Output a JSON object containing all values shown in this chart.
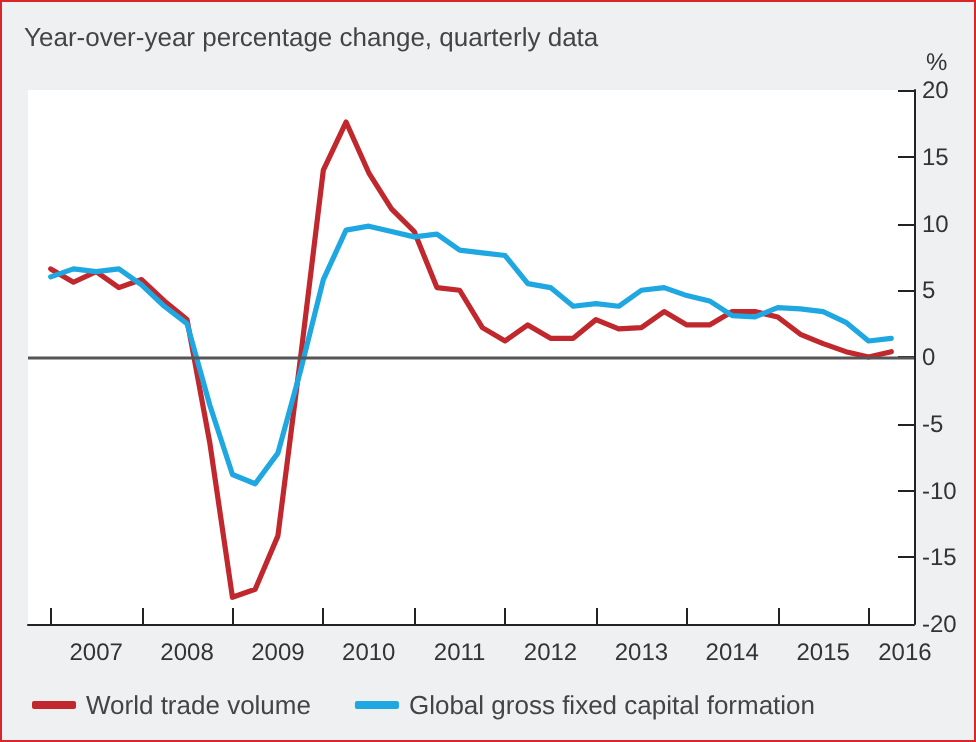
{
  "chart_data": {
    "type": "line",
    "title": "Year-over-year percentage change, quarterly data",
    "ylabel": "%",
    "x": [
      2007,
      2007.25,
      2007.5,
      2007.75,
      2008,
      2008.25,
      2008.5,
      2008.75,
      2009,
      2009.25,
      2009.5,
      2009.75,
      2010,
      2010.25,
      2010.5,
      2010.75,
      2011,
      2011.25,
      2011.5,
      2011.75,
      2012,
      2012.25,
      2012.5,
      2012.75,
      2013,
      2013.25,
      2013.5,
      2013.75,
      2014,
      2014.25,
      2014.5,
      2014.75,
      2015,
      2015.25,
      2015.5,
      2015.75,
      2016,
      2016.25
    ],
    "series": [
      {
        "name": "World trade volume",
        "color": "#c0282d",
        "values": [
          6.6,
          5.6,
          6.4,
          5.2,
          5.8,
          4.2,
          2.8,
          -6.4,
          -18,
          -17.4,
          -13.4,
          0,
          14,
          17.6,
          13.8,
          11.1,
          9.4,
          5.2,
          5,
          2.2,
          1.2,
          2.4,
          1.4,
          1.4,
          2.8,
          2.1,
          2.2,
          3.4,
          2.4,
          2.4,
          3.4,
          3.4,
          3,
          1.7,
          1,
          0.4,
          0,
          0.4
        ]
      },
      {
        "name": "Global gross fixed capital formation",
        "color": "#1ea7e1",
        "values": [
          6,
          6.6,
          6.4,
          6.6,
          5.4,
          3.8,
          2.5,
          -3.6,
          -8.8,
          -9.5,
          -7.2,
          -1,
          5.8,
          9.5,
          9.8,
          9.4,
          9,
          9.2,
          8,
          7.8,
          7.6,
          5.5,
          5.2,
          3.8,
          4,
          3.8,
          5,
          5.2,
          4.6,
          4.2,
          3.1,
          3,
          3.7,
          3.6,
          3.4,
          2.6,
          1.2,
          1.4
        ]
      }
    ],
    "xlim": [
      2006.75,
      2016.5
    ],
    "xticks": [
      {
        "value": 2007,
        "label": null
      },
      {
        "value": 2007.5,
        "label": "2007"
      },
      {
        "value": 2008,
        "label": null
      },
      {
        "value": 2008.5,
        "label": "2008"
      },
      {
        "value": 2009,
        "label": null
      },
      {
        "value": 2009.5,
        "label": "2009"
      },
      {
        "value": 2010,
        "label": null
      },
      {
        "value": 2010.5,
        "label": "2010"
      },
      {
        "value": 2011,
        "label": null
      },
      {
        "value": 2011.5,
        "label": "2011"
      },
      {
        "value": 2012,
        "label": null
      },
      {
        "value": 2012.5,
        "label": "2012"
      },
      {
        "value": 2013,
        "label": null
      },
      {
        "value": 2013.5,
        "label": "2013"
      },
      {
        "value": 2014,
        "label": null
      },
      {
        "value": 2014.5,
        "label": "2014"
      },
      {
        "value": 2015,
        "label": null
      },
      {
        "value": 2015.5,
        "label": "2015"
      },
      {
        "value": 2016,
        "label": null
      },
      {
        "value": 2016.4,
        "label": "2016"
      }
    ],
    "ylim": [
      -20,
      20
    ],
    "yticks": [
      -20,
      -15,
      -10,
      -5,
      0,
      5,
      10,
      15,
      20
    ],
    "ref_lines": [
      {
        "axis": "y",
        "value": 0,
        "color": "#555555"
      }
    ],
    "grid": false,
    "legend": "bottom",
    "marker": "none",
    "line_style": "solid"
  }
}
